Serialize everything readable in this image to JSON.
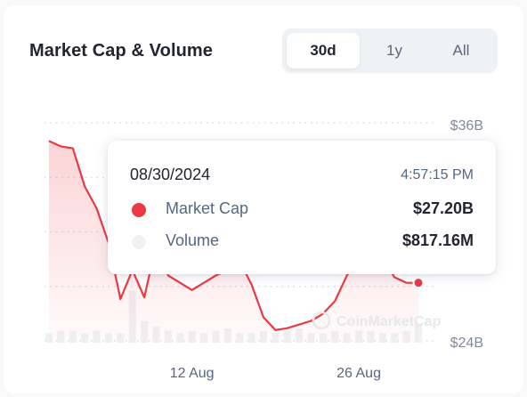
{
  "header": {
    "title": "Market Cap & Volume",
    "tabs": [
      {
        "label": "30d",
        "active": true
      },
      {
        "label": "1y",
        "active": false
      },
      {
        "label": "All",
        "active": false
      }
    ]
  },
  "chart_data": {
    "type": "line",
    "series": [
      {
        "values": [
          35.0,
          34.7,
          34.6,
          32.5,
          31.3,
          29.4,
          26.3,
          27.9,
          26.4,
          29.3,
          27.6,
          27.2,
          26.8,
          27.2,
          27.6,
          27.9,
          28.4,
          27.1,
          25.3,
          24.6,
          24.7,
          24.9,
          25.1,
          25.5,
          26.2,
          27.6,
          28.6,
          28.9,
          28.5,
          27.5,
          27.2,
          27.2
        ]
      },
      {
        "values": [
          0.4,
          0.5,
          0.5,
          0.4,
          0.5,
          0.4,
          0.4,
          2.2,
          0.9,
          0.7,
          0.5,
          0.4,
          0.5,
          0.4,
          0.5,
          0.6,
          0.4,
          0.4,
          0.5,
          0.4,
          0.5,
          0.6,
          0.4,
          0.4,
          0.5,
          0.4,
          0.5,
          0.5,
          0.4,
          0.4,
          0.5,
          0.8
        ]
      }
    ],
    "y_ticks": [
      "$36B",
      "$24B"
    ],
    "ylim": [
      24,
      36
    ],
    "x_ticks": [
      {
        "label": "12 Aug",
        "index": 12
      },
      {
        "label": "26 Aug",
        "index": 26
      }
    ],
    "grid": true,
    "line_color": "#ea3943",
    "volume_color": "#eff2f5"
  },
  "watermark": "CoinMarketCap",
  "tooltip": {
    "date": "08/30/2024",
    "time": "4:57:15 PM",
    "rows": [
      {
        "label": "Market Cap",
        "value": "$27.20B",
        "dot_color": "#ea3943"
      },
      {
        "label": "Volume",
        "value": "$817.16M",
        "dot_color": "#eff2f5"
      }
    ]
  }
}
